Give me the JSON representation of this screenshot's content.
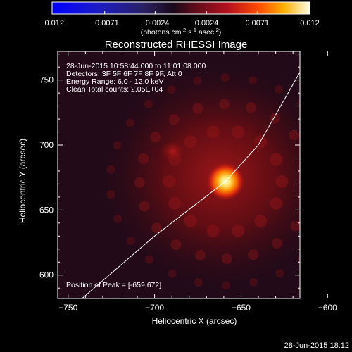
{
  "colorbar": {
    "ticks": [
      "-0.012",
      "-0.0071",
      "-0.0024",
      "0.0024",
      "0.0071",
      "0.012"
    ],
    "unit_main": "(photons cm",
    "unit_exp1": "-2",
    "unit_mid": " s",
    "unit_exp2": "-1",
    "unit_tail": " asec",
    "unit_exp3": "-2",
    "unit_close": ")"
  },
  "chart_data": {
    "type": "heatmap",
    "title": "Reconstructed RHESSI Image",
    "xlabel": "Heliocentric X (arcsec)",
    "ylabel": "Heliocentric Y (arcsec)",
    "xlim": [
      -756,
      -616
    ],
    "ylim": [
      582,
      772
    ],
    "x_ticks": [
      -750,
      -700,
      -650,
      -600
    ],
    "y_ticks": [
      600,
      650,
      700,
      750
    ],
    "x_tick_labels": [
      "−750",
      "−700",
      "−650",
      "−600"
    ],
    "y_tick_labels": [
      "600",
      "650",
      "700",
      "750"
    ],
    "peak": {
      "x": -659,
      "y": 672
    },
    "info_lines": [
      "28-Jun-2015 10:58:44.000 to 11:01:08.000",
      "Detectors: 3F 5F 6F 7F 8F 9F, Att 0",
      "Energy Range: 6.0 - 12.0 keV",
      "Clean     Total counts: 2.05E+04"
    ],
    "peak_label": "Position of Peak = [-659,672]",
    "limb_points": [
      [
        -742,
        582
      ],
      [
        -700,
        630
      ],
      [
        -659,
        672
      ],
      [
        -640,
        700
      ],
      [
        -616,
        756
      ]
    ],
    "colorbar_range": [
      -0.012,
      0.012
    ]
  },
  "footer": {
    "timestamp": "28-Jun-2015 18:12"
  }
}
